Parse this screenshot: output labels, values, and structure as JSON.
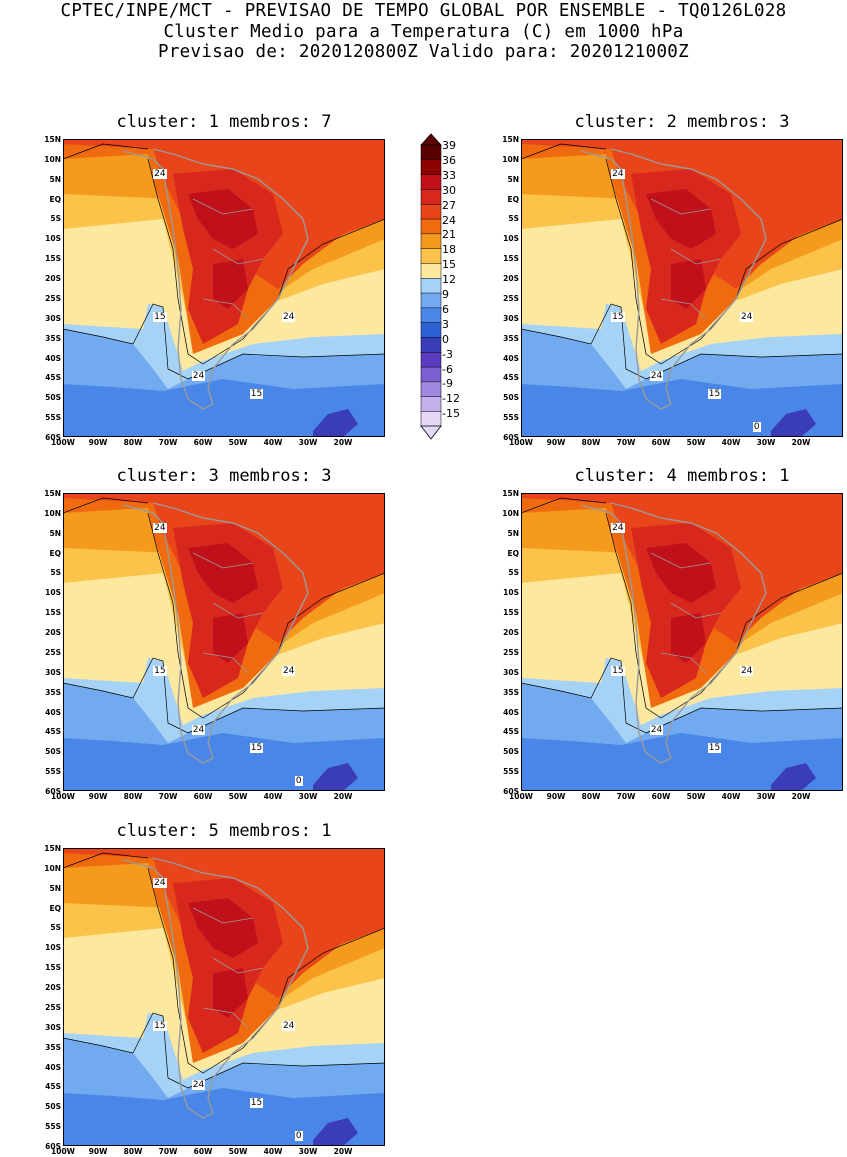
{
  "header": {
    "line1": "CPTEC/INPE/MCT - PREVISAO DE TEMPO GLOBAL POR ENSEMBLE - TQ0126L028",
    "line2": "Cluster Medio para a Temperatura (C) em 1000 hPa",
    "line3": "Previsao de: 2020120800Z   Valido para: 2020121000Z"
  },
  "panels": [
    {
      "title": "cluster: 1  membros: 7",
      "labels": [
        "24",
        "15",
        "24",
        "15",
        "24"
      ]
    },
    {
      "title": "cluster: 2  membros: 3",
      "labels": [
        "24",
        "15",
        "24",
        "15",
        "24",
        "0"
      ]
    },
    {
      "title": "cluster: 3  membros: 3",
      "labels": [
        "24",
        "15",
        "24",
        "15",
        "24",
        "0"
      ]
    },
    {
      "title": "cluster: 4  membros: 1",
      "labels": [
        "24",
        "15",
        "24",
        "15",
        "24"
      ]
    },
    {
      "title": "cluster: 5  membros: 1",
      "labels": [
        "24",
        "15",
        "24",
        "15",
        "24",
        "0"
      ]
    }
  ],
  "axes": {
    "lat_ticks": [
      "15N",
      "10N",
      "5N",
      "EQ",
      "5S",
      "10S",
      "15S",
      "20S",
      "25S",
      "30S",
      "35S",
      "40S",
      "45S",
      "50S",
      "55S",
      "60S"
    ],
    "lon_ticks": [
      "100W",
      "90W",
      "80W",
      "70W",
      "60W",
      "50W",
      "40W",
      "30W",
      "20W"
    ]
  },
  "colorbar": {
    "labels": [
      "39",
      "36",
      "33",
      "30",
      "27",
      "24",
      "21",
      "18",
      "15",
      "12",
      "9",
      "6",
      "3",
      "0",
      "-3",
      "-6",
      "-9",
      "-12",
      "-15"
    ],
    "colors": [
      "#5a0000",
      "#8c0000",
      "#c0101a",
      "#d8281e",
      "#e8461a",
      "#f06a10",
      "#f49a1c",
      "#fbc34a",
      "#fde8a0",
      "#a6d2f5",
      "#72aaf0",
      "#4a86e8",
      "#2e62d4",
      "#3a3cb8",
      "#5a3cc0",
      "#7c60d2",
      "#a088e0",
      "#c4b0ec",
      "#e4d8f6"
    ]
  }
}
